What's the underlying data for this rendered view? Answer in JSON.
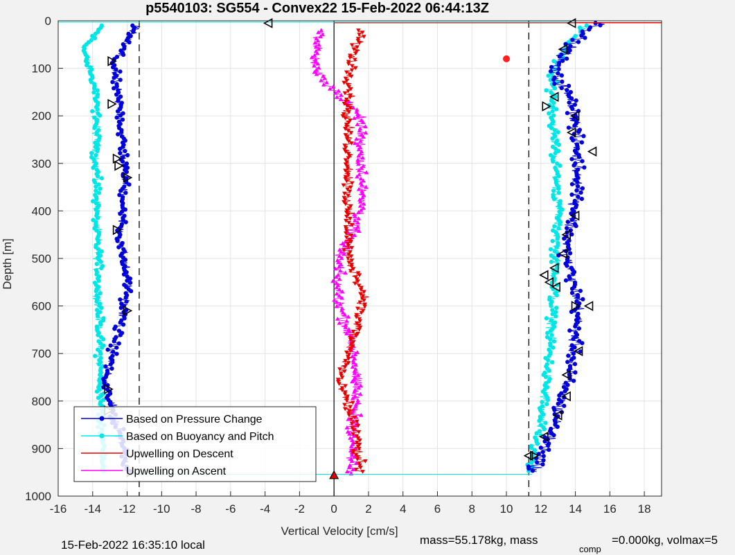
{
  "chart_data": {
    "type": "scatter",
    "title": "p5540103: SG554 - Convex22 15-Feb-2022 06:44:13Z",
    "xlabel": "Vertical Velocity [cm/s]",
    "ylabel": "Depth [m]",
    "xlim": [
      -16,
      19
    ],
    "ylim": [
      0,
      1000
    ],
    "y_reversed": true,
    "grid": true,
    "x_ticks": [
      -16,
      -14,
      -12,
      -10,
      -8,
      -6,
      -4,
      -2,
      0,
      2,
      4,
      6,
      8,
      10,
      12,
      14,
      16,
      18
    ],
    "y_ticks": [
      0,
      100,
      200,
      300,
      400,
      500,
      600,
      700,
      800,
      900,
      1000
    ],
    "legend_position": "bottom-left",
    "reference_lines": {
      "dashed_x": [
        -11.3,
        11.3
      ],
      "solid_x": [
        0
      ]
    },
    "series": [
      {
        "name": "Based on Pressure Change",
        "color": "#0000d8",
        "marker": "dot",
        "descent": [
          [
            -11.5,
            10
          ],
          [
            -12.8,
            90
          ],
          [
            -12.4,
            200
          ],
          [
            -12.1,
            330
          ],
          [
            -12.4,
            460
          ],
          [
            -11.9,
            560
          ],
          [
            -12.5,
            650
          ],
          [
            -13.3,
            760
          ],
          [
            -12.2,
            900
          ],
          [
            -11.9,
            950
          ]
        ],
        "ascent": [
          [
            11.6,
            950
          ],
          [
            12.8,
            850
          ],
          [
            13.8,
            720
          ],
          [
            14.2,
            600
          ],
          [
            13.4,
            480
          ],
          [
            14.2,
            360
          ],
          [
            14.1,
            280
          ],
          [
            13.9,
            180
          ],
          [
            12.7,
            100
          ],
          [
            14.0,
            40
          ],
          [
            15.5,
            5
          ]
        ]
      },
      {
        "name": "Based on Buoyancy and Pitch",
        "color": "#00e5e5",
        "marker": "dot",
        "descent": [
          [
            -13.5,
            10
          ],
          [
            -14.5,
            60
          ],
          [
            -13.8,
            150
          ],
          [
            -13.8,
            300
          ],
          [
            -13.7,
            500
          ],
          [
            -13.6,
            700
          ],
          [
            -13.5,
            850
          ],
          [
            -13.3,
            950
          ]
        ],
        "ascent": [
          [
            11.2,
            950
          ],
          [
            12.0,
            850
          ],
          [
            12.5,
            700
          ],
          [
            12.8,
            550
          ],
          [
            13.0,
            400
          ],
          [
            12.8,
            250
          ],
          [
            12.6,
            100
          ],
          [
            14.5,
            10
          ]
        ]
      },
      {
        "name": "Upwelling on Descent",
        "color": "#e60000",
        "marker": "triangle-down",
        "values": [
          [
            1.5,
            20
          ],
          [
            1.0,
            100
          ],
          [
            0.8,
            200
          ],
          [
            0.9,
            300
          ],
          [
            0.8,
            400
          ],
          [
            0.8,
            500
          ],
          [
            1.8,
            580
          ],
          [
            1.0,
            680
          ],
          [
            0.3,
            760
          ],
          [
            1.2,
            850
          ],
          [
            1.5,
            950
          ]
        ]
      },
      {
        "name": "Upwelling on Ascent",
        "color": "#ff00ff",
        "marker": "triangle-up",
        "values": [
          [
            -0.8,
            20
          ],
          [
            -1.2,
            100
          ],
          [
            1.5,
            200
          ],
          [
            1.6,
            300
          ],
          [
            1.6,
            400
          ],
          [
            0.3,
            500
          ],
          [
            0.2,
            580
          ],
          [
            1.2,
            700
          ],
          [
            1.3,
            800
          ],
          [
            1.0,
            900
          ],
          [
            1.0,
            955
          ]
        ]
      }
    ],
    "markers": [
      {
        "label": "triangle-left",
        "points": [
          [
            -3.8,
            5
          ],
          [
            13.8,
            5
          ],
          [
            13.3,
            60
          ],
          [
            12.8,
            160
          ],
          [
            14.0,
            200
          ],
          [
            13.8,
            235
          ],
          [
            15.0,
            275
          ],
          [
            14.0,
            410
          ],
          [
            13.5,
            450
          ],
          [
            13.3,
            490
          ],
          [
            12.8,
            520
          ],
          [
            12.2,
            535
          ],
          [
            12.5,
            550
          ],
          [
            12.9,
            560
          ],
          [
            14.8,
            600
          ],
          [
            14.2,
            695
          ],
          [
            13.5,
            745
          ],
          [
            13.5,
            790
          ],
          [
            13.0,
            830
          ],
          [
            12.2,
            875
          ],
          [
            11.3,
            915
          ]
        ]
      },
      {
        "label": "triangle-right",
        "points": [
          [
            -12.9,
            85
          ],
          [
            -12.9,
            175
          ],
          [
            -12.6,
            290
          ],
          [
            -12.5,
            305
          ],
          [
            -12.0,
            330
          ],
          [
            -12.6,
            440
          ],
          [
            -12.0,
            610
          ],
          [
            -13.1,
            775
          ],
          [
            -13.1,
            820
          ],
          [
            -11.8,
            950
          ],
          [
            12.3,
            180
          ],
          [
            14.0,
            600
          ],
          [
            11.6,
            915
          ]
        ]
      },
      {
        "label": "red-dot",
        "points": [
          [
            10.0,
            80
          ]
        ]
      }
    ]
  },
  "footer": {
    "local_time": "15-Feb-2022 16:35:10 local",
    "mass_text": "mass=55.178kg, mass",
    "comp_subscript": "comp",
    "comp_text": "=0.000kg, volmax=5"
  },
  "legend": {
    "items": [
      "Based on Pressure Change",
      "Based on Buoyancy and Pitch",
      "Upwelling on Descent",
      "Upwelling on Ascent"
    ]
  }
}
